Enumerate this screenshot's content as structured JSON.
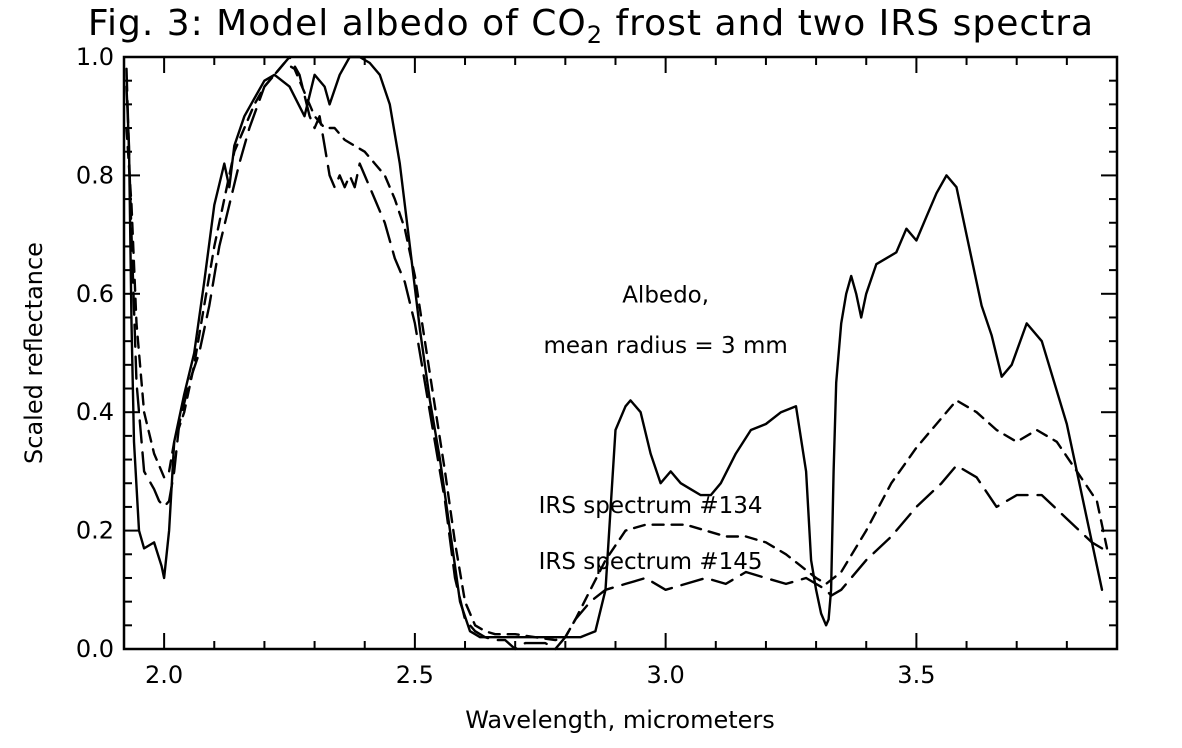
{
  "chart_data": {
    "type": "line",
    "title": {
      "prefix": "Fig. 3:  Model albedo of CO",
      "subscript": "2",
      "suffix": " frost and two IRS spectra"
    },
    "xlabel": "Wavelength, micrometers",
    "ylabel": "Scaled reflectance",
    "xlim": [
      1.92,
      3.9
    ],
    "ylim": [
      0.0,
      1.0
    ],
    "xticks": [
      {
        "value": 2.0,
        "label": "2.0"
      },
      {
        "value": 2.5,
        "label": "2.5"
      },
      {
        "value": 3.0,
        "label": "3.0"
      },
      {
        "value": 3.5,
        "label": "3.5"
      }
    ],
    "yticks": [
      {
        "value": 0.0,
        "label": "0.0"
      },
      {
        "value": 0.2,
        "label": "0.2"
      },
      {
        "value": 0.4,
        "label": "0.4"
      },
      {
        "value": 0.6,
        "label": "0.6"
      },
      {
        "value": 0.8,
        "label": "0.8"
      },
      {
        "value": 1.0,
        "label": "1.0"
      }
    ],
    "annotations": [
      {
        "text": "Albedo,",
        "x": 3.0,
        "y": 0.585
      },
      {
        "text": "mean radius = 3 mm",
        "x": 3.0,
        "y": 0.5
      },
      {
        "text": "IRS spectrum #134",
        "x": 2.97,
        "y": 0.23
      },
      {
        "text": "IRS spectrum #145",
        "x": 2.97,
        "y": 0.135
      }
    ],
    "series": [
      {
        "style": "solid",
        "x": [
          1.925,
          1.93,
          1.935,
          1.94,
          1.95,
          1.96,
          1.98,
          1.995,
          2.0,
          2.01,
          2.02,
          2.04,
          2.06,
          2.08,
          2.1,
          2.12,
          2.13,
          2.14,
          2.16,
          2.18,
          2.2,
          2.22,
          2.25,
          2.28,
          2.3,
          2.32,
          2.33,
          2.35,
          2.37,
          2.39,
          2.41,
          2.43,
          2.45,
          2.47,
          2.49,
          2.51,
          2.53,
          2.55,
          2.57,
          2.59,
          2.61,
          2.63,
          2.65,
          2.7,
          2.75,
          2.8,
          2.83,
          2.86,
          2.88,
          2.9,
          2.92,
          2.93,
          2.95,
          2.97,
          2.99,
          3.01,
          3.02,
          3.03,
          3.05,
          3.07,
          3.09,
          3.11,
          3.14,
          3.17,
          3.2,
          3.23,
          3.26,
          3.28,
          3.29,
          3.3,
          3.31,
          3.32,
          3.325,
          3.33,
          3.335,
          3.34,
          3.35,
          3.36,
          3.37,
          3.38,
          3.39,
          3.4,
          3.42,
          3.44,
          3.46,
          3.48,
          3.5,
          3.52,
          3.54,
          3.56,
          3.58,
          3.6,
          3.63,
          3.65,
          3.67,
          3.69,
          3.72,
          3.75,
          3.8,
          3.87
        ],
        "y": [
          0.95,
          0.85,
          0.55,
          0.35,
          0.2,
          0.17,
          0.18,
          0.14,
          0.12,
          0.2,
          0.35,
          0.43,
          0.5,
          0.62,
          0.75,
          0.82,
          0.78,
          0.85,
          0.9,
          0.93,
          0.96,
          0.97,
          0.95,
          0.9,
          0.97,
          0.95,
          0.92,
          0.97,
          1.0,
          1.0,
          0.99,
          0.97,
          0.92,
          0.82,
          0.68,
          0.54,
          0.42,
          0.32,
          0.2,
          0.08,
          0.03,
          0.02,
          0.02,
          0.02,
          0.02,
          0.02,
          0.02,
          0.03,
          0.1,
          0.37,
          0.41,
          0.42,
          0.4,
          0.33,
          0.28,
          0.3,
          0.29,
          0.28,
          0.27,
          0.26,
          0.26,
          0.28,
          0.33,
          0.37,
          0.38,
          0.4,
          0.41,
          0.3,
          0.15,
          0.1,
          0.06,
          0.04,
          0.05,
          0.1,
          0.3,
          0.45,
          0.55,
          0.6,
          0.63,
          0.6,
          0.56,
          0.6,
          0.65,
          0.66,
          0.67,
          0.71,
          0.69,
          0.73,
          0.77,
          0.8,
          0.78,
          0.7,
          0.58,
          0.53,
          0.46,
          0.48,
          0.55,
          0.52,
          0.38,
          0.1
        ]
      },
      {
        "style": "long-dash",
        "x": [
          1.925,
          1.935,
          1.945,
          1.96,
          1.98,
          1.99,
          2.0,
          2.01,
          2.02,
          2.03,
          2.05,
          2.07,
          2.09,
          2.11,
          2.13,
          2.15,
          2.17,
          2.2,
          2.23,
          2.25,
          2.27,
          2.29,
          2.3,
          2.31,
          2.32,
          2.33,
          2.34,
          2.35,
          2.36,
          2.37,
          2.38,
          2.39,
          2.4,
          2.42,
          2.44,
          2.46,
          2.48,
          2.5,
          2.52,
          2.54,
          2.56,
          2.58,
          2.6,
          2.62,
          2.64,
          2.66,
          2.68,
          2.7,
          2.72,
          2.74,
          2.76,
          2.78,
          2.8,
          2.82,
          2.85,
          2.88,
          2.92,
          2.96,
          3.0,
          3.04,
          3.08,
          3.12,
          3.16,
          3.2,
          3.24,
          3.28,
          3.3,
          3.32,
          3.33,
          3.35,
          3.4,
          3.45,
          3.5,
          3.55,
          3.58,
          3.62,
          3.66,
          3.7,
          3.75,
          3.8,
          3.85,
          3.87
        ],
        "y": [
          0.98,
          0.7,
          0.45,
          0.3,
          0.27,
          0.25,
          0.24,
          0.25,
          0.3,
          0.38,
          0.45,
          0.5,
          0.58,
          0.68,
          0.75,
          0.82,
          0.88,
          0.95,
          0.98,
          1.0,
          0.97,
          0.9,
          0.88,
          0.9,
          0.85,
          0.8,
          0.78,
          0.8,
          0.78,
          0.8,
          0.78,
          0.82,
          0.8,
          0.76,
          0.72,
          0.66,
          0.62,
          0.55,
          0.45,
          0.35,
          0.25,
          0.12,
          0.05,
          0.03,
          0.02,
          0.015,
          0.015,
          0.0,
          0.01,
          0.01,
          0.01,
          0.0,
          0.02,
          0.05,
          0.08,
          0.1,
          0.11,
          0.12,
          0.1,
          0.11,
          0.12,
          0.11,
          0.13,
          0.12,
          0.11,
          0.12,
          0.11,
          0.1,
          0.09,
          0.1,
          0.15,
          0.19,
          0.24,
          0.28,
          0.31,
          0.29,
          0.24,
          0.26,
          0.26,
          0.22,
          0.18,
          0.17
        ]
      },
      {
        "style": "short-dash",
        "x": [
          1.925,
          1.935,
          1.945,
          1.96,
          1.98,
          2.0,
          2.01,
          2.02,
          2.04,
          2.06,
          2.08,
          2.1,
          2.12,
          2.14,
          2.16,
          2.18,
          2.2,
          2.22,
          2.24,
          2.26,
          2.28,
          2.3,
          2.32,
          2.34,
          2.36,
          2.38,
          2.4,
          2.42,
          2.44,
          2.46,
          2.48,
          2.5,
          2.52,
          2.54,
          2.56,
          2.58,
          2.6,
          2.62,
          2.64,
          2.66,
          2.7,
          2.74,
          2.78,
          2.8,
          2.82,
          2.85,
          2.88,
          2.92,
          2.96,
          3.0,
          3.04,
          3.08,
          3.12,
          3.16,
          3.2,
          3.24,
          3.27,
          3.3,
          3.32,
          3.35,
          3.4,
          3.45,
          3.5,
          3.55,
          3.58,
          3.62,
          3.66,
          3.7,
          3.74,
          3.78,
          3.82,
          3.86,
          3.88
        ],
        "y": [
          0.88,
          0.75,
          0.55,
          0.4,
          0.33,
          0.29,
          0.3,
          0.35,
          0.4,
          0.48,
          0.58,
          0.68,
          0.76,
          0.84,
          0.88,
          0.92,
          0.95,
          0.97,
          0.99,
          0.98,
          0.94,
          0.9,
          0.88,
          0.88,
          0.86,
          0.85,
          0.84,
          0.82,
          0.8,
          0.76,
          0.71,
          0.63,
          0.52,
          0.41,
          0.3,
          0.18,
          0.08,
          0.04,
          0.03,
          0.025,
          0.025,
          0.02,
          0.015,
          0.02,
          0.05,
          0.1,
          0.15,
          0.2,
          0.21,
          0.21,
          0.21,
          0.2,
          0.19,
          0.19,
          0.18,
          0.16,
          0.14,
          0.12,
          0.11,
          0.13,
          0.2,
          0.28,
          0.34,
          0.39,
          0.42,
          0.4,
          0.37,
          0.35,
          0.37,
          0.35,
          0.3,
          0.25,
          0.17
        ]
      }
    ]
  }
}
